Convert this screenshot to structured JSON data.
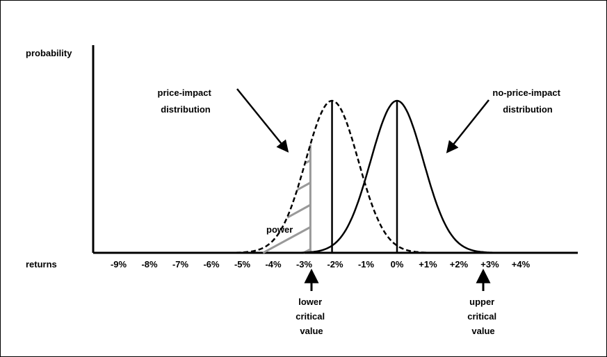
{
  "chart_data": {
    "type": "line",
    "ylabel": "probability",
    "xlabel": "returns",
    "x_ticks": [
      "-9%",
      "-8%",
      "-7%",
      "-6%",
      "-5%",
      "-4%",
      "-3%",
      "-2%",
      "-1%",
      "0%",
      "+1%",
      "+2%",
      "+3%",
      "+4%"
    ],
    "x_tick_values": [
      -9,
      -8,
      -7,
      -6,
      -5,
      -4,
      -3,
      -2,
      -1,
      0,
      1,
      2,
      3,
      4
    ],
    "series": [
      {
        "name": "price-impact distribution",
        "style": "dashed",
        "mean": -2.1,
        "sd": 0.85
      },
      {
        "name": "no-price-impact distribution",
        "style": "solid",
        "mean": 0,
        "sd": 0.85
      }
    ],
    "lower_critical": -2.8,
    "upper_critical": 2.6,
    "shaded_region": "power",
    "xlim": [
      -10,
      5.5
    ]
  },
  "labels": {
    "y_axis": "probability",
    "x_axis": "returns",
    "price_impact": [
      "price-impact",
      "distribution"
    ],
    "no_price_impact": [
      "no-price-impact",
      "distribution"
    ],
    "power": "power",
    "lower_critical": [
      "lower",
      "critical",
      "value"
    ],
    "upper_critical": [
      "upper",
      "critical",
      "value"
    ]
  },
  "colors": {
    "line": "#000000",
    "hatch": "#999999",
    "background": "#ffffff"
  }
}
